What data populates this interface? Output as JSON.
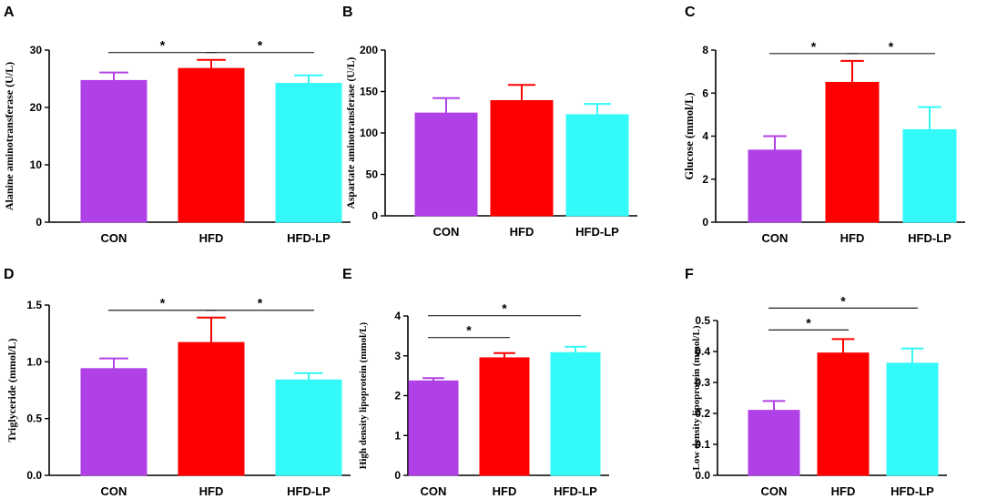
{
  "colors": {
    "CON": "#b041e6",
    "HFD": "#fe0000",
    "HFD-LP": "#33f9f8",
    "axis": "#000000"
  },
  "chart_data": [
    {
      "panel": "A",
      "type": "bar",
      "categories": [
        "CON",
        "HFD",
        "HFD-LP"
      ],
      "values": [
        24.7,
        26.8,
        24.2
      ],
      "errors": [
        1.4,
        1.5,
        1.4
      ],
      "ylabel": "Alanine aminotransferase (U/L)",
      "ylim": [
        0,
        30
      ],
      "yticks": [
        "0",
        "10",
        "20",
        "30"
      ],
      "significance": [
        {
          "from": 0,
          "to": 1,
          "label": "*"
        },
        {
          "from": 1,
          "to": 2,
          "label": "*"
        }
      ]
    },
    {
      "panel": "B",
      "type": "bar",
      "categories": [
        "CON",
        "HFD",
        "HFD-LP"
      ],
      "values": [
        124,
        139,
        122
      ],
      "errors": [
        18,
        19,
        13
      ],
      "ylabel": "Aspartate aminotransferase (U/L)",
      "ylim": [
        0,
        200
      ],
      "yticks": [
        "0",
        "50",
        "100",
        "150",
        "200"
      ],
      "significance": []
    },
    {
      "panel": "C",
      "type": "bar",
      "categories": [
        "CON",
        "HFD",
        "HFD-LP"
      ],
      "values": [
        3.35,
        6.5,
        4.3
      ],
      "errors": [
        0.65,
        1.0,
        1.05
      ],
      "ylabel": "Glucose (mmol/L)",
      "ylim": [
        0,
        8
      ],
      "yticks": [
        "0",
        "2",
        "4",
        "6",
        "8"
      ],
      "significance": [
        {
          "from": 0,
          "to": 1,
          "label": "*"
        },
        {
          "from": 1,
          "to": 2,
          "label": "*"
        }
      ]
    },
    {
      "panel": "D",
      "type": "bar",
      "categories": [
        "CON",
        "HFD",
        "HFD-LP"
      ],
      "values": [
        0.94,
        1.17,
        0.84
      ],
      "errors": [
        0.09,
        0.22,
        0.06
      ],
      "ylabel": "Triglyceride (mmol/L)",
      "ylim": [
        0,
        1.5
      ],
      "yticks": [
        "0.0",
        "0.5",
        "1.0",
        "1.5"
      ],
      "significance": [
        {
          "from": 0,
          "to": 1,
          "label": "*"
        },
        {
          "from": 1,
          "to": 2,
          "label": "*"
        }
      ]
    },
    {
      "panel": "E",
      "type": "bar",
      "categories": [
        "CON",
        "HFD",
        "HFD-LP"
      ],
      "values": [
        2.37,
        2.95,
        3.08
      ],
      "errors": [
        0.07,
        0.12,
        0.15
      ],
      "ylabel": "High density lipoprotein (mmol/L)",
      "ylim": [
        0,
        4
      ],
      "yticks": [
        "0",
        "1",
        "2",
        "3",
        "4"
      ],
      "significance": [
        {
          "from": 0,
          "to": 1,
          "label": "*"
        },
        {
          "from": 0,
          "to": 2,
          "label": "*"
        }
      ]
    },
    {
      "panel": "F",
      "type": "bar",
      "categories": [
        "CON",
        "HFD",
        "HFD-LP"
      ],
      "values": [
        0.21,
        0.395,
        0.362
      ],
      "errors": [
        0.03,
        0.045,
        0.048
      ],
      "ylabel": "Low density lipoprotein (mmol/L)",
      "ylim": [
        0,
        0.5
      ],
      "yticks": [
        "0.0",
        "0.1",
        "0.2",
        "0.3",
        "0.4",
        "0.5"
      ],
      "significance": [
        {
          "from": 0,
          "to": 1,
          "label": "*"
        },
        {
          "from": 0,
          "to": 2,
          "label": "*"
        }
      ]
    }
  ]
}
